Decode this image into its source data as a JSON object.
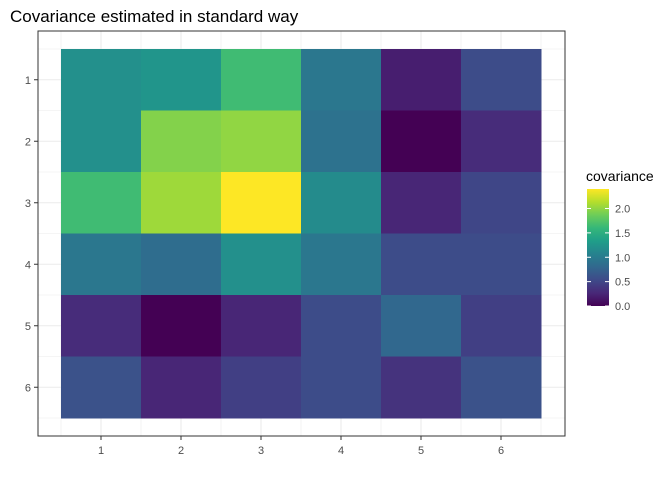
{
  "chart_data": {
    "type": "heatmap",
    "title": "Covariance estimated in standard way",
    "x_categories": [
      "1",
      "2",
      "3",
      "4",
      "5",
      "6"
    ],
    "y_categories": [
      "1",
      "2",
      "3",
      "4",
      "5",
      "6"
    ],
    "values": [
      [
        1.2,
        1.25,
        1.65,
        0.95,
        0.2,
        0.55
      ],
      [
        1.2,
        1.95,
        2.0,
        0.9,
        0.0,
        0.3
      ],
      [
        1.65,
        2.05,
        2.4,
        1.15,
        0.25,
        0.5
      ],
      [
        0.95,
        0.85,
        1.2,
        0.95,
        0.55,
        0.55
      ],
      [
        0.3,
        0.0,
        0.25,
        0.55,
        0.8,
        0.45
      ],
      [
        0.6,
        0.25,
        0.45,
        0.55,
        0.35,
        0.6
      ]
    ],
    "color_range": [
      0.0,
      2.4
    ],
    "legend": {
      "title": "covariance",
      "ticks": [
        "0.0",
        "0.5",
        "1.0",
        "1.5",
        "2.0"
      ],
      "tick_values": [
        0.0,
        0.5,
        1.0,
        1.5,
        2.0
      ],
      "placement": "right"
    },
    "colormap": [
      "#440154",
      "#482878",
      "#3e4a89",
      "#31688e",
      "#26828e",
      "#1f9e89",
      "#35b779",
      "#6dcd59",
      "#b4de2c",
      "#fde725"
    ],
    "grid": true,
    "panel_background": "#ffffff",
    "grid_color": "#ebebeb",
    "border_color": "#333333"
  }
}
